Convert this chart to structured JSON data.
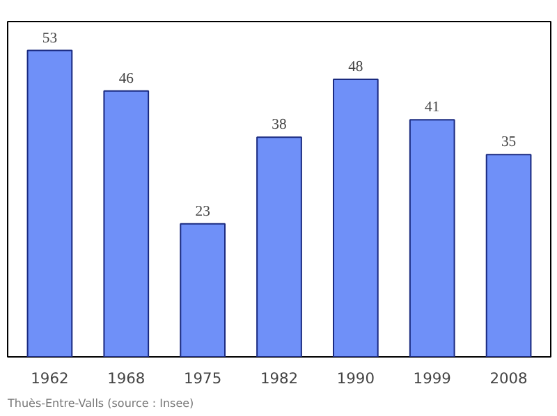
{
  "chart_data": {
    "type": "bar",
    "categories": [
      "1962",
      "1968",
      "1975",
      "1982",
      "1990",
      "1999",
      "2008"
    ],
    "values": [
      53,
      46,
      23,
      38,
      48,
      41,
      35
    ],
    "color": "#6f90f8",
    "data_labels": true,
    "ylim": [
      0,
      58
    ],
    "grid": false,
    "tick_labels": "x",
    "annotations": [
      "Thuès-Entre-Valls    (source : Insee)"
    ]
  }
}
